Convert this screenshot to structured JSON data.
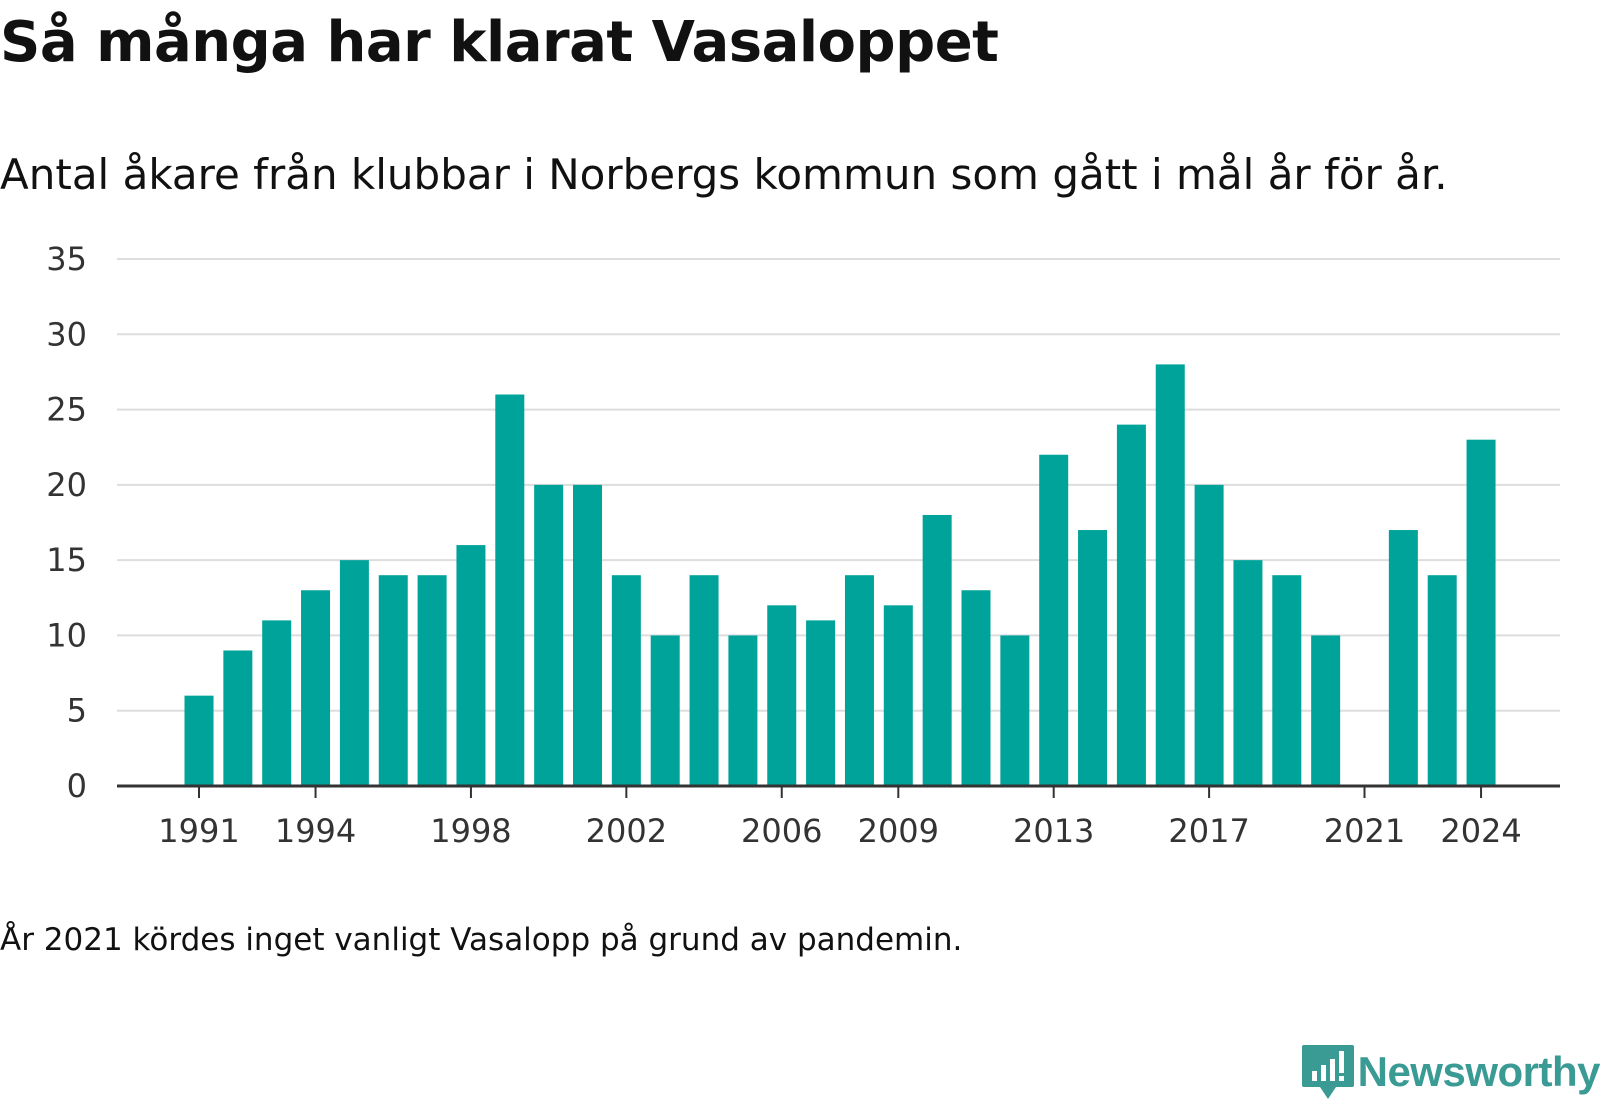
{
  "title": "Så många har klarat Vasaloppet",
  "subtitle": "Antal åkare från klubbar i Norbergs kommun som gått i mål år för år.",
  "footnote": "År 2021 kördes inget vanligt Vasalopp på grund av pandemin.",
  "brand": "Newsworthy",
  "colors": {
    "bar": "#00a39a",
    "grid": "#dddddd",
    "axis": "#333333",
    "logo": "#3a9a94"
  },
  "chart_data": {
    "type": "bar",
    "x": [
      1991,
      1992,
      1993,
      1994,
      1995,
      1996,
      1997,
      1998,
      1999,
      2000,
      2001,
      2002,
      2003,
      2004,
      2005,
      2006,
      2007,
      2008,
      2009,
      2010,
      2011,
      2012,
      2013,
      2014,
      2015,
      2016,
      2017,
      2018,
      2019,
      2020,
      2021,
      2022,
      2023,
      2024
    ],
    "values": [
      6,
      9,
      11,
      13,
      15,
      14,
      14,
      16,
      26,
      20,
      20,
      14,
      10,
      14,
      10,
      12,
      11,
      14,
      12,
      18,
      13,
      10,
      22,
      17,
      24,
      28,
      20,
      15,
      14,
      10,
      0,
      17,
      14,
      23
    ],
    "x_ticks": [
      1991,
      1994,
      1998,
      2002,
      2006,
      2009,
      2013,
      2017,
      2021,
      2024
    ],
    "y_ticks": [
      0,
      5,
      10,
      15,
      20,
      25,
      30,
      35
    ],
    "ylim": [
      0,
      35
    ],
    "grid": true,
    "legend": "none"
  }
}
